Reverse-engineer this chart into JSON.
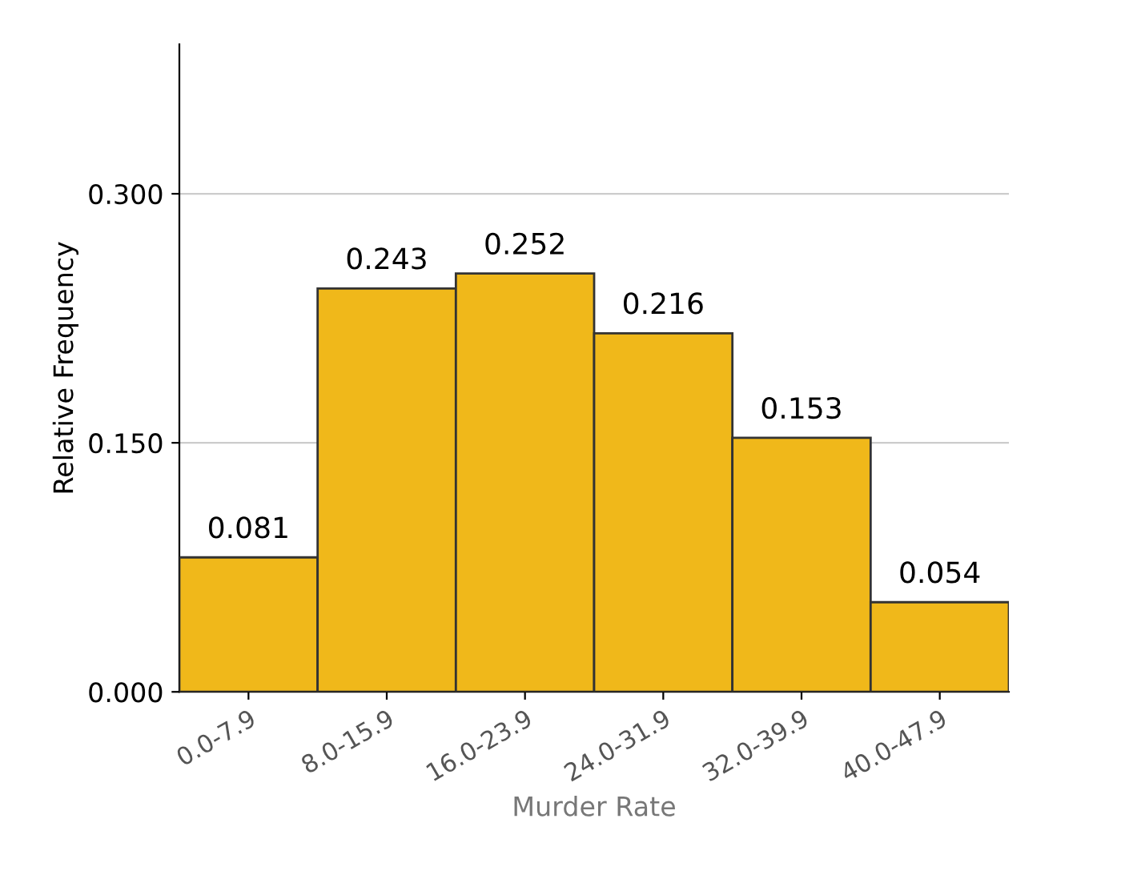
{
  "chart_data": {
    "type": "bar",
    "categories": [
      "0.0-7.9",
      "8.0-15.9",
      "16.0-23.9",
      "24.0-31.9",
      "32.0-39.9",
      "40.0-47.9"
    ],
    "values": [
      0.081,
      0.243,
      0.252,
      0.216,
      0.153,
      0.054
    ],
    "color": "#f0b81a",
    "xlabel": "Murder Rate",
    "ylabel": "Relative Frequency",
    "ylim": [
      0,
      0.39
    ],
    "yticks": [
      {
        "value": 0,
        "label": "0.000"
      },
      {
        "value": 0.15,
        "label": "0.150"
      },
      {
        "value": 0.3,
        "label": "0.300"
      }
    ],
    "grid": "y",
    "data_labels": true
  }
}
